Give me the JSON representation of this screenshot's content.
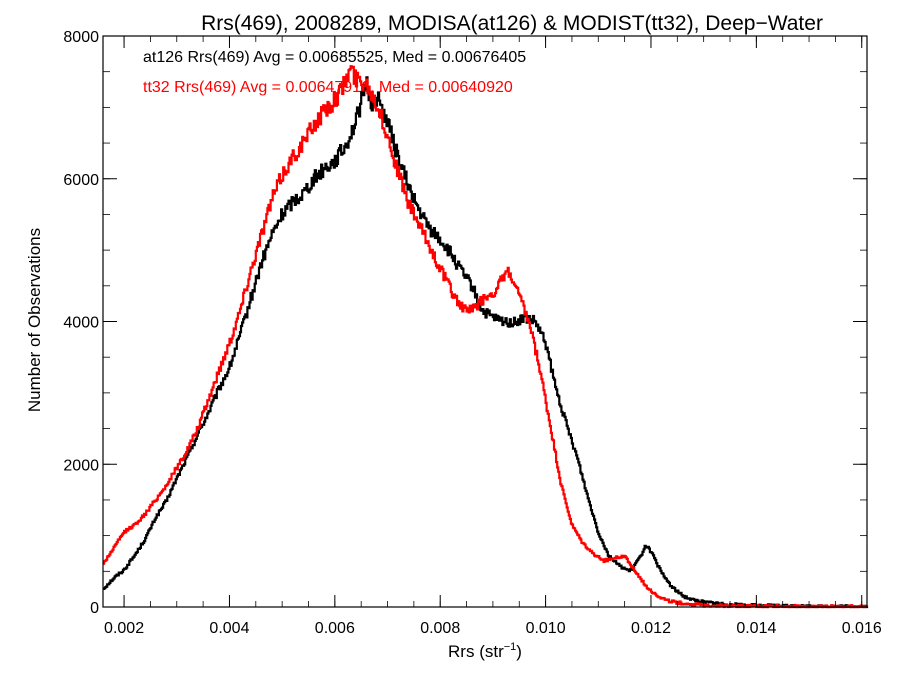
{
  "chart_data": {
    "type": "line",
    "step": true,
    "title": "Rrs(469), 2008289, MODISA(at126) & MODIST(tt32), Deep−Water",
    "xlabel_base": "Rrs (str",
    "xlabel_sup": "−1",
    "xlabel_close": ")",
    "ylabel": "Number of Observations",
    "xlim": [
      0.0016,
      0.0161
    ],
    "ylim": [
      0,
      8000
    ],
    "xticks": [
      0.002,
      0.004,
      0.006,
      0.008,
      0.01,
      0.012,
      0.014,
      0.016
    ],
    "xtick_labels": [
      "0.002",
      "0.004",
      "0.006",
      "0.008",
      "0.010",
      "0.012",
      "0.014",
      "0.016"
    ],
    "yticks": [
      0,
      2000,
      4000,
      6000,
      8000
    ],
    "ytick_labels": [
      "0",
      "2000",
      "4000",
      "6000",
      "8000"
    ],
    "grid": false,
    "annotations": [
      {
        "text": "at126 Rrs(469) Avg = 0.00685525, Med = 0.00676405",
        "color": "#000000"
      },
      {
        "text": "tt32 Rrs(469) Avg = 0.00647916, Med = 0.00640920",
        "color": "#ff0000"
      }
    ],
    "series": [
      {
        "color": "#000000",
        "points": [
          [
            0.0016,
            250
          ],
          [
            0.0018,
            400
          ],
          [
            0.002,
            520
          ],
          [
            0.0022,
            720
          ],
          [
            0.0024,
            950
          ],
          [
            0.0026,
            1250
          ],
          [
            0.0028,
            1480
          ],
          [
            0.003,
            1800
          ],
          [
            0.0032,
            2100
          ],
          [
            0.0034,
            2420
          ],
          [
            0.0036,
            2720
          ],
          [
            0.0038,
            3050
          ],
          [
            0.004,
            3350
          ],
          [
            0.0042,
            3800
          ],
          [
            0.0044,
            4300
          ],
          [
            0.0046,
            4800
          ],
          [
            0.0048,
            5200
          ],
          [
            0.005,
            5500
          ],
          [
            0.0052,
            5680
          ],
          [
            0.0054,
            5800
          ],
          [
            0.0056,
            6000
          ],
          [
            0.0058,
            6150
          ],
          [
            0.006,
            6250
          ],
          [
            0.0062,
            6450
          ],
          [
            0.0064,
            6800
          ],
          [
            0.0066,
            7350
          ],
          [
            0.0067,
            7050
          ],
          [
            0.0068,
            7150
          ],
          [
            0.007,
            6800
          ],
          [
            0.0072,
            6300
          ],
          [
            0.0074,
            5900
          ],
          [
            0.0076,
            5550
          ],
          [
            0.0078,
            5300
          ],
          [
            0.008,
            5150
          ],
          [
            0.0082,
            4950
          ],
          [
            0.0084,
            4700
          ],
          [
            0.0086,
            4500
          ],
          [
            0.0088,
            4150
          ],
          [
            0.009,
            4050
          ],
          [
            0.0092,
            4000
          ],
          [
            0.0094,
            3980
          ],
          [
            0.0096,
            4050
          ],
          [
            0.0098,
            4000
          ],
          [
            0.01,
            3700
          ],
          [
            0.0102,
            3050
          ],
          [
            0.0104,
            2550
          ],
          [
            0.0106,
            2100
          ],
          [
            0.0108,
            1550
          ],
          [
            0.011,
            1050
          ],
          [
            0.0112,
            720
          ],
          [
            0.0114,
            580
          ],
          [
            0.0116,
            500
          ],
          [
            0.0118,
            700
          ],
          [
            0.0119,
            870
          ],
          [
            0.012,
            780
          ],
          [
            0.0122,
            480
          ],
          [
            0.0124,
            280
          ],
          [
            0.0126,
            160
          ],
          [
            0.0128,
            100
          ],
          [
            0.013,
            70
          ],
          [
            0.0134,
            40
          ],
          [
            0.014,
            20
          ],
          [
            0.015,
            8
          ],
          [
            0.0161,
            5
          ]
        ]
      },
      {
        "color": "#ff0000",
        "points": [
          [
            0.0016,
            600
          ],
          [
            0.0018,
            820
          ],
          [
            0.002,
            1050
          ],
          [
            0.0022,
            1150
          ],
          [
            0.0024,
            1300
          ],
          [
            0.0026,
            1500
          ],
          [
            0.0028,
            1700
          ],
          [
            0.003,
            1950
          ],
          [
            0.0032,
            2200
          ],
          [
            0.0034,
            2500
          ],
          [
            0.0036,
            2900
          ],
          [
            0.0038,
            3300
          ],
          [
            0.004,
            3700
          ],
          [
            0.0042,
            4150
          ],
          [
            0.0044,
            4700
          ],
          [
            0.0046,
            5200
          ],
          [
            0.0048,
            5700
          ],
          [
            0.005,
            6050
          ],
          [
            0.0052,
            6300
          ],
          [
            0.0054,
            6500
          ],
          [
            0.0056,
            6750
          ],
          [
            0.0058,
            6950
          ],
          [
            0.006,
            7100
          ],
          [
            0.0062,
            7350
          ],
          [
            0.0063,
            7550
          ],
          [
            0.0064,
            7400
          ],
          [
            0.0066,
            7350
          ],
          [
            0.0068,
            7050
          ],
          [
            0.007,
            6600
          ],
          [
            0.0072,
            6100
          ],
          [
            0.0074,
            5650
          ],
          [
            0.0076,
            5350
          ],
          [
            0.0078,
            5050
          ],
          [
            0.008,
            4750
          ],
          [
            0.0082,
            4450
          ],
          [
            0.0084,
            4200
          ],
          [
            0.0086,
            4150
          ],
          [
            0.0088,
            4300
          ],
          [
            0.009,
            4400
          ],
          [
            0.0092,
            4600
          ],
          [
            0.0093,
            4700
          ],
          [
            0.0095,
            4350
          ],
          [
            0.0097,
            3950
          ],
          [
            0.0099,
            3300
          ],
          [
            0.0101,
            2500
          ],
          [
            0.0103,
            1700
          ],
          [
            0.0105,
            1150
          ],
          [
            0.0107,
            900
          ],
          [
            0.0109,
            750
          ],
          [
            0.0111,
            650
          ],
          [
            0.0113,
            680
          ],
          [
            0.0115,
            720
          ],
          [
            0.0117,
            500
          ],
          [
            0.0119,
            300
          ],
          [
            0.0121,
            170
          ],
          [
            0.0123,
            90
          ],
          [
            0.0126,
            50
          ],
          [
            0.013,
            25
          ],
          [
            0.014,
            10
          ],
          [
            0.0161,
            5
          ]
        ]
      }
    ]
  }
}
